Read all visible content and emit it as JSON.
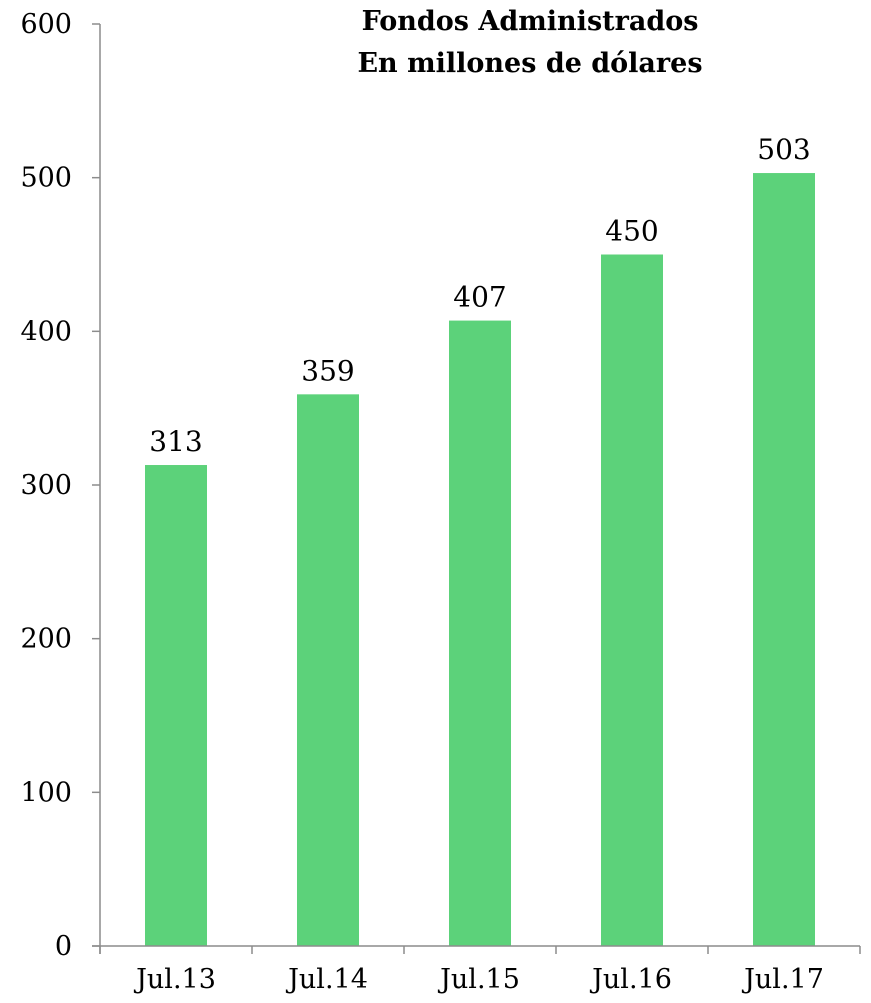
{
  "chart_data": {
    "type": "bar",
    "title": "Fondos Administrados",
    "subtitle": "En millones de dólares",
    "xlabel": "",
    "ylabel": "",
    "categories": [
      "Jul.13",
      "Jul.14",
      "Jul.15",
      "Jul.16",
      "Jul.17"
    ],
    "values": [
      313,
      359,
      407,
      450,
      503
    ],
    "data_labels": [
      "313",
      "359",
      "407",
      "450",
      "503"
    ],
    "ylim": [
      0,
      600
    ],
    "yticks": [
      0,
      100,
      200,
      300,
      400,
      500,
      600
    ],
    "ytick_labels": [
      "0",
      "100",
      "200",
      "300",
      "400",
      "500",
      "600"
    ],
    "grid": false,
    "legend": "none",
    "bar_color": "#5cd27a"
  }
}
